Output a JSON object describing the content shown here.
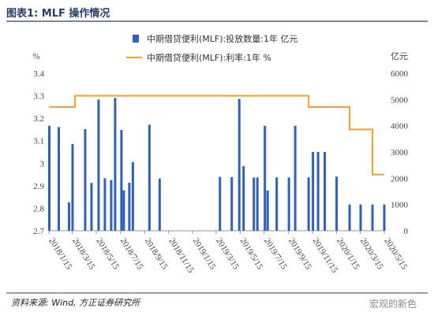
{
  "header": {
    "title": "图表1:  MLF 操作情况"
  },
  "footer": {
    "source": "资料来源: Wind, 方正证券研究所",
    "watermark": "宏观的新色"
  },
  "colors": {
    "bar": "#2f5fbf",
    "line": "#f0a030",
    "rule": "#2a3d6b"
  },
  "chart_data": {
    "type": "bar",
    "left_unit": "%",
    "right_unit": "亿元",
    "left_ylim": [
      2.7,
      3.4
    ],
    "left_ticks": [
      2.7,
      2.8,
      2.9,
      3,
      3.1,
      3.2,
      3.3,
      3.4
    ],
    "right_ylim": [
      0,
      6000
    ],
    "right_ticks": [
      0,
      1000,
      2000,
      3000,
      4000,
      5000,
      6000
    ],
    "xlim": [
      "2018-01-15",
      "2020-05-15"
    ],
    "x_tick_labels": [
      "2018/1/15",
      "2018/3/15",
      "2018/5/15",
      "2018/7/15",
      "2018/9/15",
      "2018/11/15",
      "2019/1/15",
      "2019/3/15",
      "2019/5/15",
      "2019/7/15",
      "2019/9/15",
      "2019/11/15",
      "2020/1/15",
      "2020/3/15",
      "2020/5/15"
    ],
    "x_tick_dates": [
      "2018-01-15",
      "2018-03-15",
      "2018-05-15",
      "2018-07-15",
      "2018-09-15",
      "2018-11-15",
      "2019-01-15",
      "2019-03-15",
      "2019-05-15",
      "2019-07-15",
      "2019-09-15",
      "2019-11-15",
      "2020-01-15",
      "2020-03-15",
      "2020-05-15"
    ],
    "legend": [
      "中期借贷便利(MLF):投放数量:1年 亿元",
      "中期借贷便利(MLF):利率:1年 %"
    ],
    "series": [
      {
        "name": "中期借贷便利(MLF):投放数量:1年 亿元",
        "kind": "bar",
        "axis": "right",
        "points": [
          {
            "date": "2018-01-16",
            "value": 4000
          },
          {
            "date": "2018-02-09",
            "value": 3950
          },
          {
            "date": "2018-03-07",
            "value": 1080
          },
          {
            "date": "2018-03-16",
            "value": 3300
          },
          {
            "date": "2018-04-17",
            "value": 3870
          },
          {
            "date": "2018-05-03",
            "value": 1820
          },
          {
            "date": "2018-05-21",
            "value": 5000
          },
          {
            "date": "2018-06-06",
            "value": 2000
          },
          {
            "date": "2018-06-22",
            "value": 1930
          },
          {
            "date": "2018-07-02",
            "value": 5060
          },
          {
            "date": "2018-07-18",
            "value": 3840
          },
          {
            "date": "2018-07-24",
            "value": 1540
          },
          {
            "date": "2018-08-07",
            "value": 1830
          },
          {
            "date": "2018-08-16",
            "value": 2620
          },
          {
            "date": "2018-09-27",
            "value": 4040
          },
          {
            "date": "2018-10-23",
            "value": 1990
          },
          {
            "date": "2019-03-25",
            "value": 2050
          },
          {
            "date": "2019-04-24",
            "value": 2040
          },
          {
            "date": "2019-05-13",
            "value": 5020
          },
          {
            "date": "2019-05-24",
            "value": 2460
          },
          {
            "date": "2019-06-19",
            "value": 2030
          },
          {
            "date": "2019-06-28",
            "value": 2030
          },
          {
            "date": "2019-07-17",
            "value": 4000
          },
          {
            "date": "2019-07-24",
            "value": 1530
          },
          {
            "date": "2019-08-16",
            "value": 2030
          },
          {
            "date": "2019-09-16",
            "value": 2030
          },
          {
            "date": "2019-10-02",
            "value": 4000
          },
          {
            "date": "2019-11-05",
            "value": 2030
          },
          {
            "date": "2019-11-16",
            "value": 3000
          },
          {
            "date": "2019-11-29",
            "value": 3000
          },
          {
            "date": "2019-12-16",
            "value": 3000
          },
          {
            "date": "2020-01-15",
            "value": 2060
          },
          {
            "date": "2020-02-17",
            "value": 1000
          },
          {
            "date": "2020-03-16",
            "value": 1000
          },
          {
            "date": "2020-04-15",
            "value": 1000
          },
          {
            "date": "2020-05-15",
            "value": 1000
          }
        ]
      },
      {
        "name": "中期借贷便利(MLF):利率:1年 %",
        "kind": "step-line",
        "axis": "left",
        "points": [
          {
            "date": "2018-01-15",
            "value": 3.25
          },
          {
            "date": "2018-03-22",
            "value": 3.3
          },
          {
            "date": "2019-11-05",
            "value": 3.25
          },
          {
            "date": "2020-02-17",
            "value": 3.15
          },
          {
            "date": "2020-04-15",
            "value": 2.95
          },
          {
            "date": "2020-05-15",
            "value": 2.95
          }
        ]
      }
    ]
  }
}
